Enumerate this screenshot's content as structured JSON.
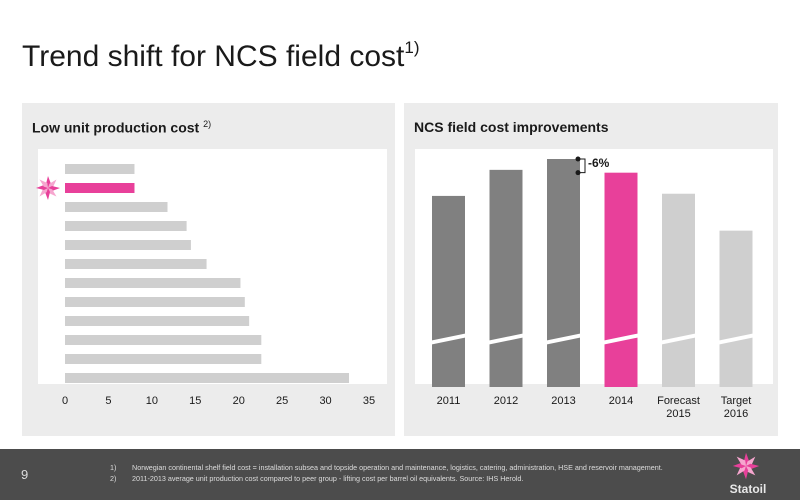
{
  "slide": {
    "title": "Trend shift for NCS field cost",
    "title_sup": "1)",
    "page_number": "9"
  },
  "left_panel": {
    "title": "Low unit production cost",
    "title_sup": "2)"
  },
  "right_panel": {
    "title": "NCS field cost improvements",
    "change_label": "-6%"
  },
  "footnotes": [
    {
      "num": "1)",
      "text": "Norwegian continental shelf field cost = installation subsea and topside operation and maintenance, logistics, catering, administration, HSE and reservoir management."
    },
    {
      "num": "2)",
      "text": "2011-2013 average unit production cost compared to peer group - lifting cost per barrel oil equivalents. Source: IHS Herold."
    }
  ],
  "logo_text": "Statoil",
  "colors": {
    "accent": "#e8409a",
    "dark_bar": "#808080",
    "light_bar": "#cfcfcf",
    "panel_bg": "#ececec",
    "footer_bg": "#4c4c4c"
  },
  "chart_data": [
    {
      "type": "bar",
      "orientation": "horizontal",
      "values": [
        8,
        8,
        11.8,
        14,
        14.5,
        16.3,
        20.2,
        20.7,
        21.2,
        22.6,
        22.6,
        32.7
      ],
      "highlight_index": 1,
      "highlight_marker": "statoil-star-icon",
      "xlim": [
        0,
        35
      ],
      "xticks": [
        0,
        5,
        10,
        15,
        20,
        25,
        30,
        35
      ],
      "grid": false
    },
    {
      "type": "bar",
      "categories": [
        "2011",
        "2012",
        "2013",
        "2014",
        "Forecast 2015",
        "Target 2016"
      ],
      "values": [
        88,
        100,
        105,
        98.7,
        89,
        72
      ],
      "colors": [
        "#808080",
        "#808080",
        "#808080",
        "#e8409a",
        "#cfcfcf",
        "#cfcfcf"
      ],
      "axis_break": true,
      "annotation": {
        "text": "-6%",
        "from": "2013",
        "to": "2014"
      },
      "ylim": [
        0,
        105
      ]
    }
  ]
}
